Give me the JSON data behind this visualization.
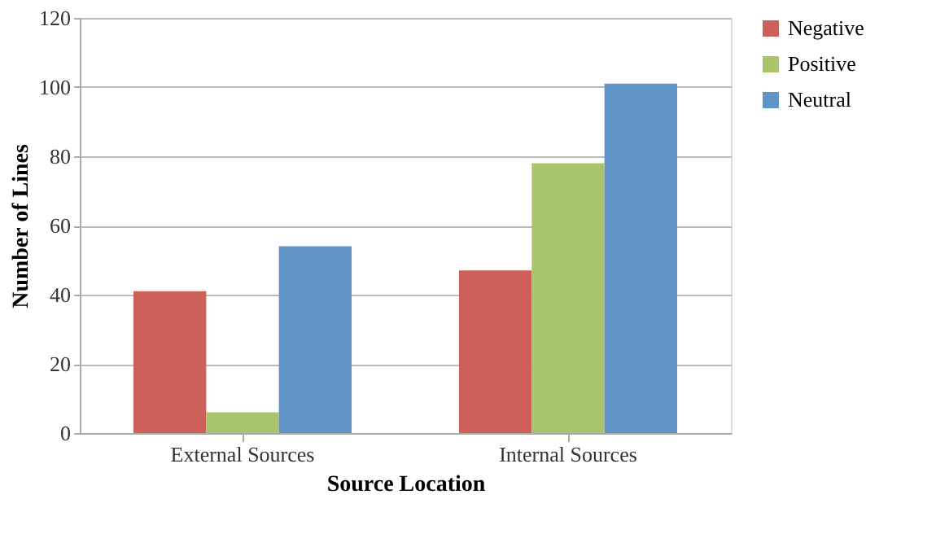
{
  "chart_data": {
    "type": "bar",
    "xlabel": "Source Location",
    "ylabel": "Number of Lines",
    "categories": [
      "External Sources",
      "Internal Sources"
    ],
    "series": [
      {
        "name": "Negative",
        "color": "#cd6159",
        "values": [
          41,
          47
        ]
      },
      {
        "name": "Positive",
        "color": "#a9c56b",
        "values": [
          6,
          78
        ]
      },
      {
        "name": "Neutral",
        "color": "#6194c9",
        "values": [
          54,
          101
        ]
      }
    ],
    "ylim": [
      0,
      120
    ],
    "yticks": [
      0,
      20,
      40,
      60,
      80,
      100,
      120
    ],
    "grid": "y",
    "legend": "right"
  }
}
